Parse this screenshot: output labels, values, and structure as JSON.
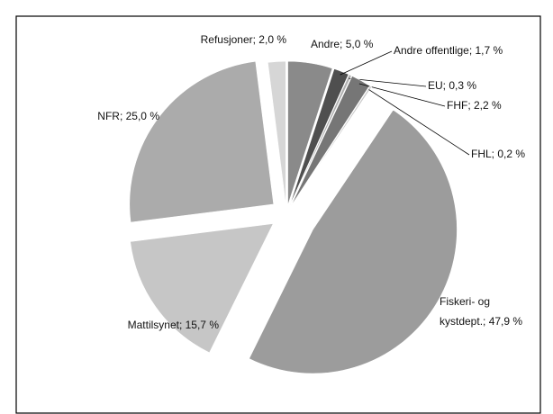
{
  "chart_data": {
    "type": "pie",
    "labels": [
      "Andre; 5,0 %",
      "Andre offentlige; 1,7 %",
      "EU; 0,3 %",
      "FHF; 2,2 %",
      "FHL; 0,2 %",
      "Fiskeri- og\nkystdept.; 47,9 %",
      "Mattilsynet; 15,7 %",
      "NFR; 25,0 %",
      "Refusjoner; 2,0 %"
    ],
    "values": [
      5.0,
      1.7,
      0.3,
      2.2,
      0.2,
      47.9,
      15.7,
      25.0,
      2.0
    ],
    "colors": [
      "#8a8a8a",
      "#4f4f4f",
      "#b0b0b0",
      "#767676",
      "#c8c8c8",
      "#9c9c9c",
      "#c6c6c6",
      "#ababab",
      "#d6d6d6"
    ]
  }
}
